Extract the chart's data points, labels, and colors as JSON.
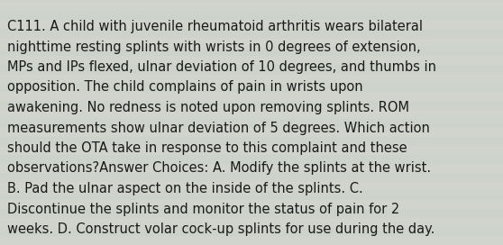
{
  "lines": [
    "C111. A child with juvenile rheumatoid arthritis wears bilateral",
    "nighttime resting splints with wrists in 0 degrees of extension,",
    "MPs and IPs flexed, ulnar deviation of 10 degrees, and thumbs in",
    "opposition. The child complains of pain in wrists upon",
    "awakening. No redness is noted upon removing splints. ROM",
    "measurements show ulnar deviation of 5 degrees. Which action",
    "should the OTA take in response to this complaint and these",
    "observations?Answer Choices: A. Modify the splints at the wrist.",
    "B. Pad the ulnar aspect on the inside of the splints. C.",
    "Discontinue the splints and monitor the status of pain for 2",
    "weeks. D. Construct volar cock-up splints for use during the day."
  ],
  "background_color": "#d4d8d0",
  "stripe_color_light": "#cdd2cc",
  "stripe_color_dark": "#c8cdc6",
  "text_color": "#1a1a1a",
  "font_size": 10.5,
  "fig_width": 5.58,
  "fig_height": 2.72
}
